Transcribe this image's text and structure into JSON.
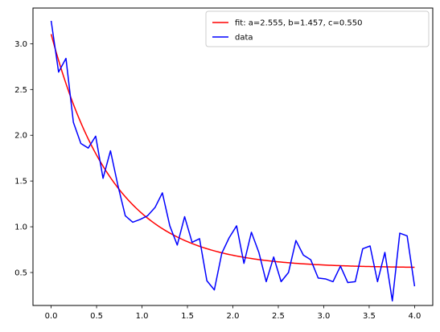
{
  "chart_data": {
    "type": "line",
    "title": "",
    "xlabel": "",
    "ylabel": "",
    "xlim": [
      -0.2,
      4.2
    ],
    "ylim": [
      0.14,
      3.39
    ],
    "grid": false,
    "legend_position": "top-right",
    "x_ticks": [
      0.0,
      0.5,
      1.0,
      1.5,
      2.0,
      2.5,
      3.0,
      3.5,
      4.0
    ],
    "x_tick_labels": [
      "0.0",
      "0.5",
      "1.0",
      "1.5",
      "2.0",
      "2.5",
      "3.0",
      "3.5",
      "4.0"
    ],
    "y_ticks": [
      0.5,
      1.0,
      1.5,
      2.0,
      2.5,
      3.0
    ],
    "y_tick_labels": [
      "0.5",
      "1.0",
      "1.5",
      "2.0",
      "2.5",
      "3.0"
    ],
    "series": [
      {
        "name": "fit: a=2.555, b=1.457, c=0.550",
        "color": "#ff0000",
        "kind": "curve",
        "model": "exponential decay",
        "params": {
          "a": 2.555,
          "b": 1.457,
          "c": 0.55
        },
        "x_range": [
          0,
          4
        ]
      },
      {
        "name": "data",
        "color": "#0000ff",
        "kind": "data",
        "x": [
          0.0,
          0.082,
          0.163,
          0.245,
          0.327,
          0.408,
          0.49,
          0.571,
          0.653,
          0.735,
          0.816,
          0.898,
          0.98,
          1.061,
          1.143,
          1.224,
          1.306,
          1.388,
          1.469,
          1.551,
          1.633,
          1.714,
          1.796,
          1.878,
          1.959,
          2.041,
          2.122,
          2.204,
          2.286,
          2.367,
          2.449,
          2.531,
          2.612,
          2.694,
          2.776,
          2.857,
          2.939,
          3.02,
          3.102,
          3.184,
          3.265,
          3.347,
          3.429,
          3.51,
          3.592,
          3.673,
          3.755,
          3.837,
          3.918,
          4.0
        ],
        "y": [
          3.25,
          2.69,
          2.84,
          2.14,
          1.91,
          1.86,
          1.99,
          1.53,
          1.83,
          1.45,
          1.12,
          1.05,
          1.08,
          1.12,
          1.21,
          1.37,
          1.01,
          0.8,
          1.11,
          0.83,
          0.87,
          0.41,
          0.31,
          0.71,
          0.88,
          1.01,
          0.6,
          0.94,
          0.72,
          0.4,
          0.67,
          0.4,
          0.5,
          0.85,
          0.69,
          0.64,
          0.44,
          0.43,
          0.4,
          0.57,
          0.39,
          0.4,
          0.76,
          0.79,
          0.4,
          0.72,
          0.19,
          0.93,
          0.9,
          0.35
        ]
      }
    ]
  }
}
